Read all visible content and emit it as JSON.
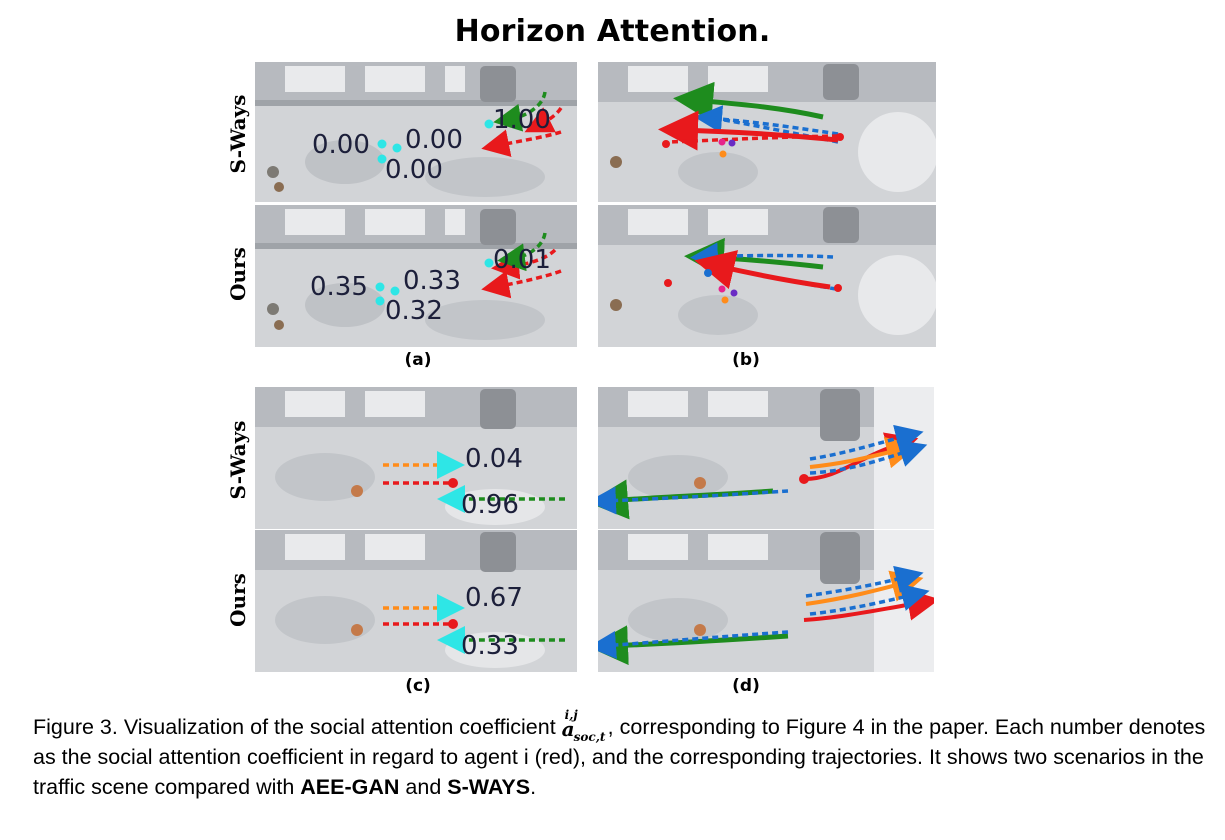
{
  "title": "Horizon Attention.",
  "row_labels": {
    "top_sways": "S-Ways",
    "top_ours": "Ours",
    "bottom_sways": "S-Ways",
    "bottom_ours": "Ours"
  },
  "sublabels": {
    "a": "(a)",
    "b": "(b)",
    "c": "(c)",
    "d": "(d)"
  },
  "panel_a_sways": {
    "values": [
      "0.00",
      "0.00",
      "0.00",
      "1.00"
    ]
  },
  "panel_a_ours": {
    "values": [
      "0.35",
      "0.33",
      "0.32",
      "0.01"
    ]
  },
  "panel_c_sways": {
    "values": [
      "0.04",
      "0.96"
    ]
  },
  "panel_c_ours": {
    "values": [
      "0.67",
      "0.33"
    ]
  },
  "caption": {
    "part1": "Figure 3. Visualization of the social attention coefficient ",
    "math_base": "a",
    "math_sup": "i,j",
    "math_sub": "soc,t",
    "part2": ", corresponding to Figure 4 in the paper. Each number denotes as the social attention coefficient in regard to agent i (red), and the corresponding trajectories. It shows two scenarios in the traffic scene compared with ",
    "bold1": "AEE-GAN",
    "part3": " and ",
    "bold2": "S-WAYS",
    "part4": "."
  },
  "colors": {
    "agent_i": "#e8191c",
    "neighbor_green": "#1e8c1e",
    "neighbor_blue": "#1a6fd0",
    "neighbor_orange": "#ff8c1a",
    "attention_dot": "#2ee6e6",
    "ground": "#cfd1d4",
    "building": "#b9bcc1"
  }
}
